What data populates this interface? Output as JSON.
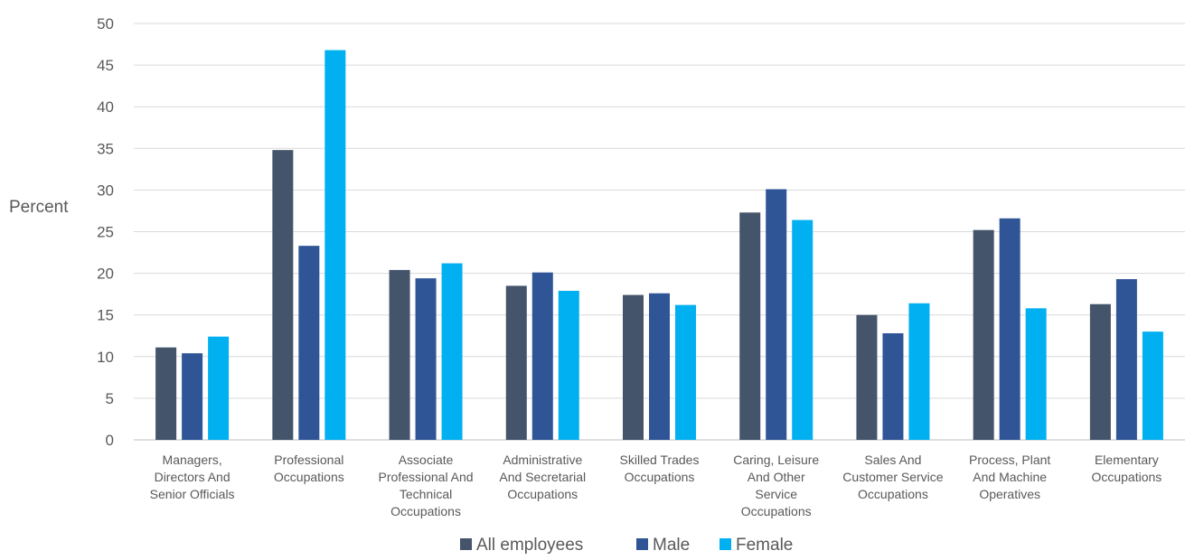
{
  "chart_data": {
    "type": "bar",
    "ylabel": "Percent",
    "xlabel": "",
    "ylim": [
      0,
      50
    ],
    "ytick_step": 5,
    "grid": true,
    "legend_position": "bottom",
    "categories": [
      "Managers, Directors And Senior Officials",
      "Professional Occupations",
      "Associate Professional And Technical Occupations",
      "Administrative And Secretarial Occupations",
      "Skilled Trades Occupations",
      "Caring, Leisure And Other Service Occupations",
      "Sales And Customer Service Occupations",
      "Process, Plant And Machine Operatives",
      "Elementary Occupations"
    ],
    "category_lines": [
      [
        "Managers,",
        "Directors And",
        "Senior Officials"
      ],
      [
        "Professional",
        "Occupations"
      ],
      [
        "Associate",
        "Professional And",
        "Technical",
        "Occupations"
      ],
      [
        "Administrative",
        "And Secretarial",
        "Occupations"
      ],
      [
        "Skilled Trades",
        "Occupations"
      ],
      [
        "Caring, Leisure",
        "And Other",
        "Service",
        "Occupations"
      ],
      [
        "Sales And",
        "Customer Service",
        "Occupations"
      ],
      [
        "Process, Plant",
        "And Machine",
        "Operatives"
      ],
      [
        "Elementary",
        "Occupations"
      ]
    ],
    "series": [
      {
        "name": "All employees",
        "color": "#44546a",
        "values": [
          11.1,
          34.8,
          20.4,
          18.5,
          17.4,
          27.3,
          15.0,
          25.2,
          16.3
        ]
      },
      {
        "name": "Male",
        "color": "#2f5597",
        "values": [
          10.4,
          23.3,
          19.4,
          20.1,
          17.6,
          30.1,
          12.8,
          26.6,
          19.3
        ]
      },
      {
        "name": "Female",
        "color": "#00b0f0",
        "values": [
          12.4,
          46.8,
          21.2,
          17.9,
          16.2,
          26.4,
          16.4,
          15.8,
          13.0
        ]
      }
    ]
  }
}
